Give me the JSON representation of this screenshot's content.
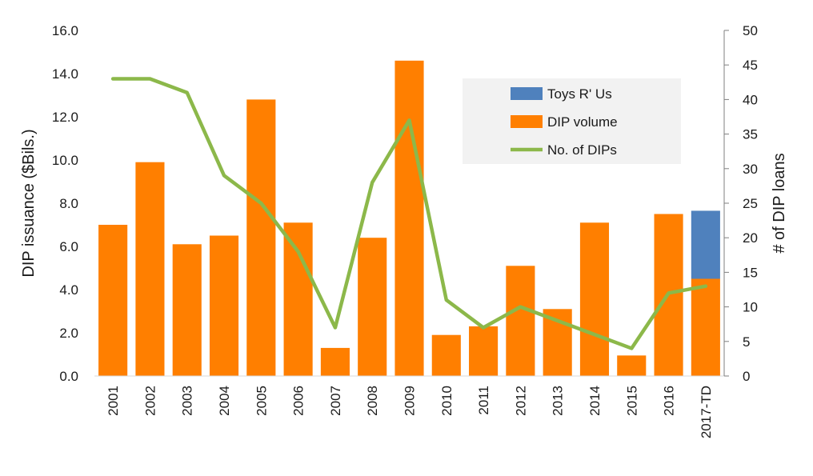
{
  "chart_data": {
    "type": "bar",
    "categories": [
      "2001",
      "2002",
      "2003",
      "2004",
      "2005",
      "2006",
      "2007",
      "2008",
      "2009",
      "2010",
      "2011",
      "2012",
      "2013",
      "2014",
      "2015",
      "2016",
      "2017-TD"
    ],
    "series": [
      {
        "name": "DIP volume",
        "kind": "bar",
        "axis": "left",
        "color": "#ff7f00",
        "values": [
          7.0,
          9.9,
          6.1,
          6.5,
          12.8,
          7.1,
          1.3,
          6.4,
          14.6,
          1.9,
          2.3,
          5.1,
          3.1,
          7.1,
          0.95,
          7.5,
          4.5
        ]
      },
      {
        "name": "Toys R' Us",
        "kind": "bar",
        "stacked_on": "DIP volume",
        "axis": "left",
        "color": "#4f81bd",
        "values": [
          0,
          0,
          0,
          0,
          0,
          0,
          0,
          0,
          0,
          0,
          0,
          0,
          0,
          0,
          0,
          0,
          3.15
        ]
      },
      {
        "name": "No. of DIPs",
        "kind": "line",
        "axis": "right",
        "color": "#8cb84a",
        "values": [
          43,
          43,
          41,
          29,
          25,
          18,
          7,
          28,
          37,
          11,
          7,
          10,
          8,
          6,
          4,
          12,
          13
        ]
      }
    ],
    "ylabel": "DIP issuance ($Bils.)",
    "y2label": "# of DIP loans",
    "xlabel": "",
    "ylim": [
      0,
      16
    ],
    "y2lim": [
      0,
      50
    ],
    "yticks": [
      "0.0",
      "2.0",
      "4.0",
      "6.0",
      "8.0",
      "10.0",
      "12.0",
      "14.0",
      "16.0"
    ],
    "y2ticks": [
      "0",
      "5",
      "10",
      "15",
      "20",
      "25",
      "30",
      "35",
      "40",
      "45",
      "50"
    ],
    "legend": {
      "placement": "top-right",
      "entries": [
        "Toys R' Us",
        "DIP volume",
        "No. of DIPs"
      ]
    },
    "grid": false
  }
}
